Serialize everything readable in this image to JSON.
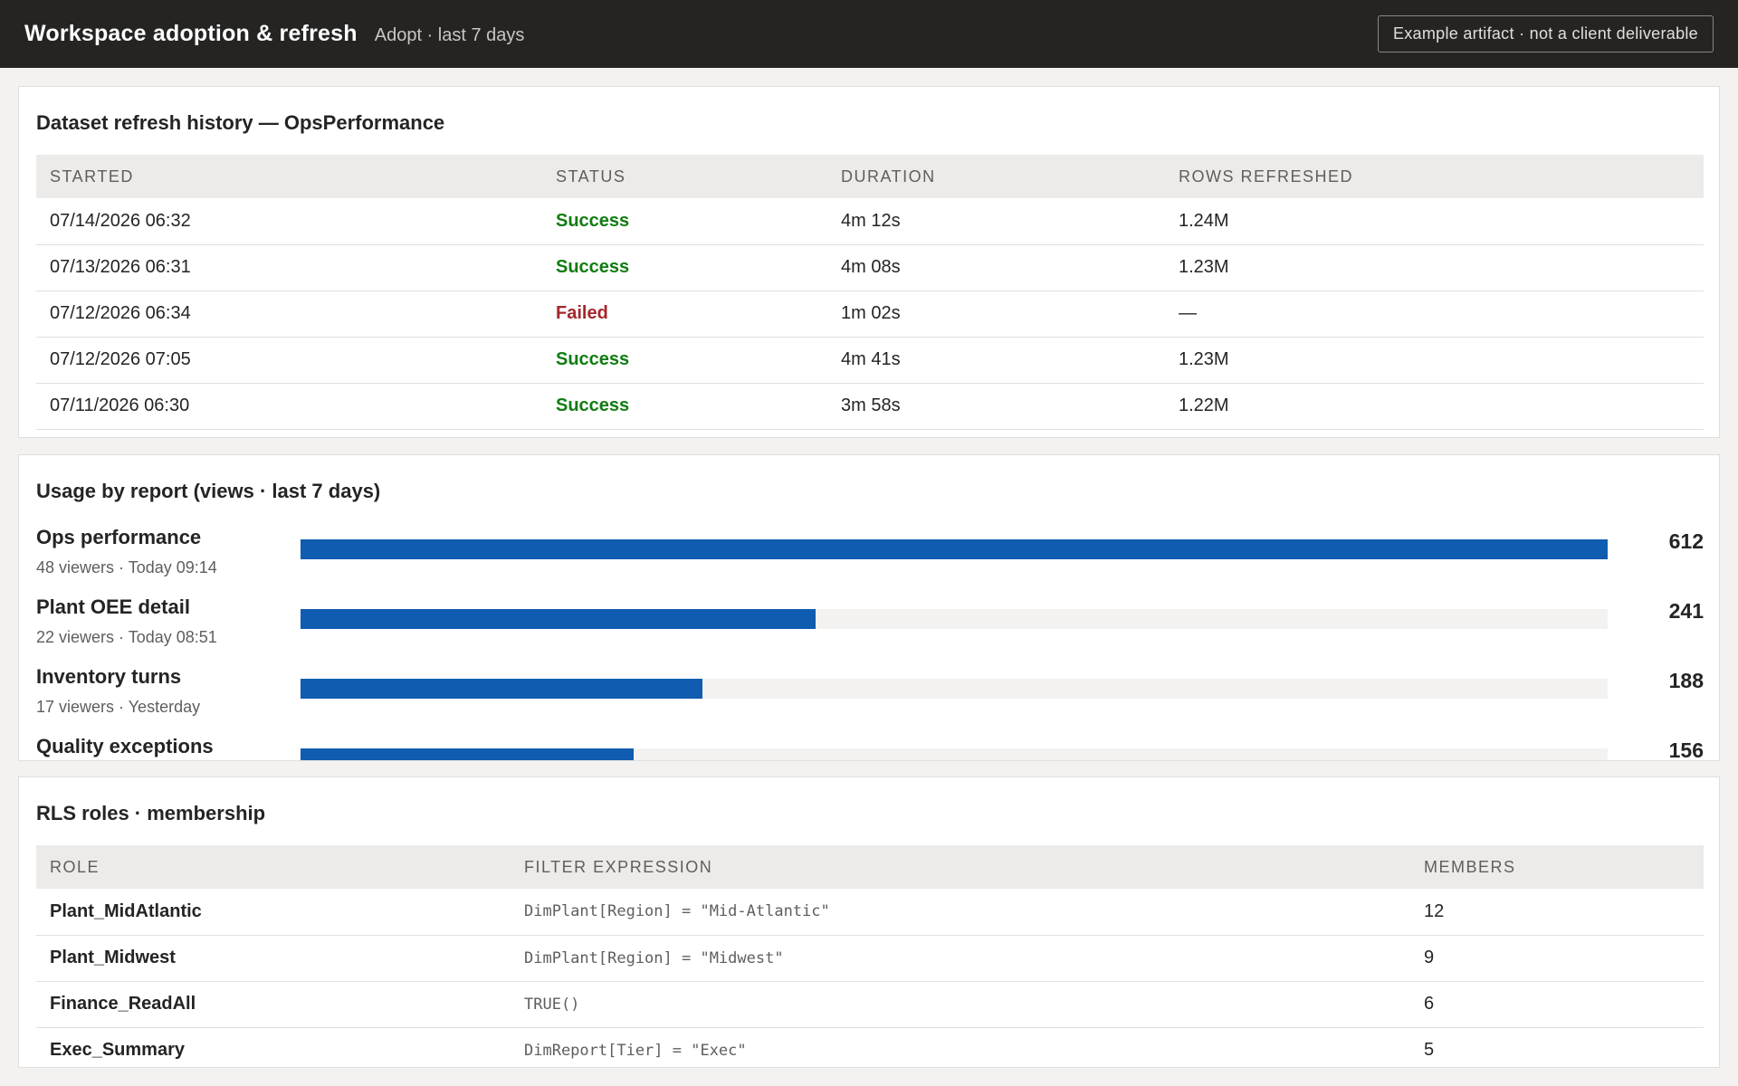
{
  "header": {
    "title": "Workspace adoption & refresh",
    "subtitle": "Adopt · last 7 days",
    "badge": "Example artifact · not a client deliverable"
  },
  "refresh": {
    "title": "Dataset refresh history — OpsPerformance",
    "columns": [
      "STARTED",
      "STATUS",
      "DURATION",
      "ROWS REFRESHED"
    ],
    "rows": [
      {
        "started": "07/14/2026 06:32",
        "status": "Success",
        "duration": "4m 12s",
        "rows": "1.24M"
      },
      {
        "started": "07/13/2026 06:31",
        "status": "Success",
        "duration": "4m 08s",
        "rows": "1.23M"
      },
      {
        "started": "07/12/2026 06:34",
        "status": "Failed",
        "duration": "1m 02s",
        "rows": "—"
      },
      {
        "started": "07/12/2026 07:05",
        "status": "Success",
        "duration": "4m 41s",
        "rows": "1.23M"
      },
      {
        "started": "07/11/2026 06:30",
        "status": "Success",
        "duration": "3m 58s",
        "rows": "1.22M"
      }
    ],
    "status_colors": {
      "Success": "#107c10",
      "Failed": "#a4262c"
    }
  },
  "usage": {
    "title": "Usage by report (views · last 7 days)",
    "bar_color": "#0f5cb0",
    "max": 612,
    "reports": [
      {
        "name": "Ops performance",
        "meta": "48 viewers · Today 09:14",
        "views": 612
      },
      {
        "name": "Plant OEE detail",
        "meta": "22 viewers · Today 08:51",
        "views": 241
      },
      {
        "name": "Inventory turns",
        "meta": "17 viewers · Yesterday",
        "views": 188
      },
      {
        "name": "Quality exceptions",
        "meta": "",
        "views": 156
      }
    ]
  },
  "rls": {
    "title": "RLS roles · membership",
    "columns": [
      "ROLE",
      "FILTER EXPRESSION",
      "MEMBERS"
    ],
    "rows": [
      {
        "role": "Plant_MidAtlantic",
        "expr": "DimPlant[Region] = \"Mid-Atlantic\"",
        "members": "12"
      },
      {
        "role": "Plant_Midwest",
        "expr": "DimPlant[Region] = \"Midwest\"",
        "members": "9"
      },
      {
        "role": "Finance_ReadAll",
        "expr": "TRUE()",
        "members": "6"
      },
      {
        "role": "Exec_Summary",
        "expr": "DimReport[Tier] = \"Exec\"",
        "members": "5"
      }
    ]
  }
}
